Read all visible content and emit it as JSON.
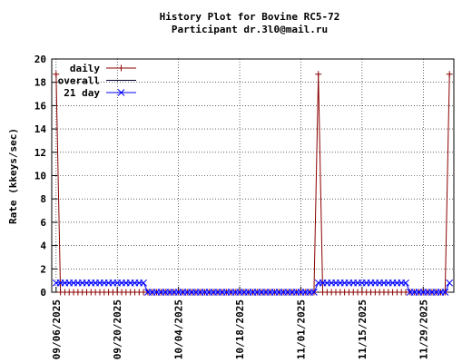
{
  "chart_data": {
    "type": "line",
    "title": "History Plot for Bovine RC5-72",
    "subtitle": "Participant dr.3l0@mail.ru",
    "y_label": "Rate (kkeys/sec)",
    "x": [
      "09/06/2025",
      "09/07/2025",
      "09/08/2025",
      "09/09/2025",
      "09/10/2025",
      "09/11/2025",
      "09/12/2025",
      "09/13/2025",
      "09/14/2025",
      "09/15/2025",
      "09/16/2025",
      "09/17/2025",
      "09/18/2025",
      "09/19/2025",
      "09/20/2025",
      "09/21/2025",
      "09/22/2025",
      "09/23/2025",
      "09/24/2025",
      "09/25/2025",
      "09/26/2025",
      "09/27/2025",
      "09/28/2025",
      "09/29/2025",
      "09/30/2025",
      "10/01/2025",
      "10/02/2025",
      "10/03/2025",
      "10/04/2025",
      "10/05/2025",
      "10/06/2025",
      "10/07/2025",
      "10/08/2025",
      "10/09/2025",
      "10/10/2025",
      "10/11/2025",
      "10/12/2025",
      "10/13/2025",
      "10/14/2025",
      "10/15/2025",
      "10/16/2025",
      "10/17/2025",
      "10/18/2025",
      "10/19/2025",
      "10/20/2025",
      "10/21/2025",
      "10/22/2025",
      "10/23/2025",
      "10/24/2025",
      "10/25/2025",
      "10/26/2025",
      "10/27/2025",
      "10/28/2025",
      "10/29/2025",
      "10/30/2025",
      "10/31/2025",
      "11/01/2025",
      "11/02/2025",
      "11/03/2025",
      "11/04/2025",
      "11/05/2025",
      "11/06/2025",
      "11/07/2025",
      "11/08/2025",
      "11/09/2025",
      "11/10/2025",
      "11/11/2025",
      "11/12/2025",
      "11/13/2025",
      "11/14/2025",
      "11/15/2025",
      "11/16/2025",
      "11/17/2025",
      "11/18/2025",
      "11/19/2025",
      "11/20/2025",
      "11/21/2025",
      "11/22/2025",
      "11/23/2025",
      "11/24/2025",
      "11/25/2025",
      "11/26/2025",
      "11/27/2025",
      "11/28/2025",
      "11/29/2025",
      "11/30/2025",
      "12/01/2025",
      "12/02/2025",
      "12/03/2025",
      "12/04/2025",
      "12/05/2025"
    ],
    "series": [
      {
        "name": "daily",
        "color": "#8b0000",
        "marker": "+",
        "values": [
          18.7,
          0,
          0,
          0,
          0,
          0,
          0,
          0,
          0,
          0,
          0,
          0,
          0,
          0,
          0,
          0,
          0,
          0,
          0,
          0,
          0,
          0,
          0,
          0,
          0,
          0,
          0,
          0,
          0,
          0,
          0,
          0,
          0,
          0,
          0,
          0,
          0,
          0,
          0,
          0,
          0,
          0,
          0,
          0,
          0,
          0,
          0,
          0,
          0,
          0,
          0,
          0,
          0,
          0,
          0,
          0,
          0,
          0,
          0,
          0,
          18.7,
          0,
          0,
          0,
          0,
          0,
          0,
          0,
          0,
          0,
          0,
          0,
          0,
          0,
          0,
          0,
          0,
          0,
          0,
          0,
          0,
          0,
          0,
          0,
          0,
          0,
          0,
          0,
          0,
          0,
          18.7
        ]
      },
      {
        "name": "overall",
        "color": "#000033",
        "values": [
          null,
          null,
          null,
          null,
          null,
          null,
          null,
          null,
          null,
          null,
          null,
          null,
          null,
          null,
          null,
          null,
          null,
          null,
          null,
          null,
          null,
          null,
          null,
          null,
          null,
          null,
          null,
          null,
          null,
          null,
          null,
          null,
          null,
          null,
          null,
          null,
          null,
          null,
          null,
          null,
          null,
          null,
          null,
          null,
          null,
          null,
          null,
          null,
          null,
          null,
          null,
          null,
          null,
          null,
          null,
          null,
          null,
          null,
          null,
          null,
          null,
          null,
          null,
          null,
          null,
          null,
          null,
          null,
          null,
          null,
          null,
          null,
          null,
          null,
          null,
          null,
          null,
          null,
          null,
          null,
          null,
          null,
          null,
          null,
          null,
          null,
          null,
          null,
          null,
          null,
          null
        ]
      },
      {
        "name": "21 day",
        "color": "#0000ff",
        "marker": "x",
        "values": [
          0.8,
          0.8,
          0.8,
          0.8,
          0.8,
          0.8,
          0.8,
          0.8,
          0.8,
          0.8,
          0.8,
          0.8,
          0.8,
          0.8,
          0.8,
          0.8,
          0.8,
          0.8,
          0.8,
          0.8,
          0.8,
          0,
          0,
          0,
          0,
          0,
          0,
          0,
          0,
          0,
          0,
          0,
          0,
          0,
          0,
          0,
          0,
          0,
          0,
          0,
          0,
          0,
          0,
          0,
          0,
          0,
          0,
          0,
          0,
          0,
          0,
          0,
          0,
          0,
          0,
          0,
          0,
          0,
          0,
          0,
          0.8,
          0.8,
          0.8,
          0.8,
          0.8,
          0.8,
          0.8,
          0.8,
          0.8,
          0.8,
          0.8,
          0.8,
          0.8,
          0.8,
          0.8,
          0.8,
          0.8,
          0.8,
          0.8,
          0.8,
          0.8,
          0,
          0,
          0,
          0,
          0,
          0,
          0,
          0,
          0,
          0.8
        ]
      }
    ],
    "xlim": [
      "09/05/2025",
      "12/06/2025"
    ],
    "xticks": [
      "09/06/2025",
      "09/20/2025",
      "10/04/2025",
      "10/18/2025",
      "11/01/2025",
      "11/15/2025",
      "11/29/2025"
    ],
    "ylim": [
      0,
      20
    ],
    "yticks": [
      0,
      2,
      4,
      6,
      8,
      10,
      12,
      14,
      16,
      18,
      20
    ],
    "grid": true,
    "legend": "top-left"
  }
}
